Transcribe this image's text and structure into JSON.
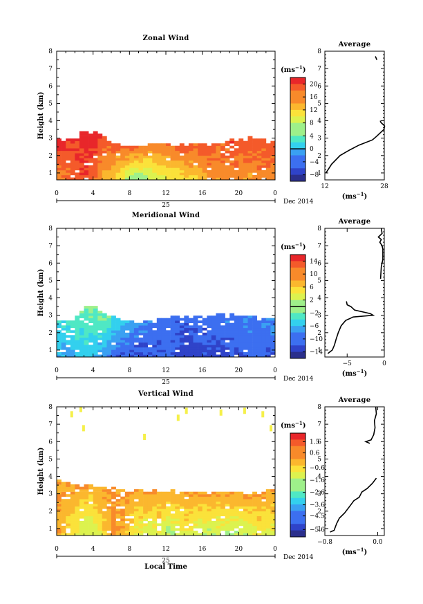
{
  "date_label": "Dec 2014",
  "xaxis_title": "Local Time",
  "day_label": "25",
  "ylabel": "Height (km)",
  "unit": "(ms",
  "unit_exp": "−1",
  "avg_title": "Average",
  "chart_data": [
    {
      "type": "heatmap",
      "title": "Zonal Wind",
      "xlabel": "",
      "ylabel": "Height (km)",
      "xticks": [
        "0",
        "4",
        "8",
        "12",
        "16",
        "20",
        "0"
      ],
      "xlim": [
        0,
        24
      ],
      "yticks": [
        "1",
        "2",
        "3",
        "4",
        "5",
        "6",
        "7",
        "8"
      ],
      "ylim": [
        0.6,
        8.0
      ],
      "colorbar": {
        "ticks": [
          "20",
          "16",
          "12",
          "8",
          "4",
          "0",
          "−4",
          "−8"
        ],
        "values": [
          20,
          16,
          12,
          8,
          4,
          0,
          -4,
          -8
        ],
        "range": [
          -10,
          22
        ],
        "contour_value": 0
      },
      "x": [
        0,
        1,
        2,
        3,
        4,
        5,
        6,
        7,
        8,
        9,
        10,
        11,
        12,
        13,
        14,
        15,
        16,
        17,
        18,
        19,
        20,
        21,
        22,
        23,
        24
      ],
      "top_km": [
        2.8,
        2.8,
        3.0,
        3.3,
        3.3,
        2.9,
        2.6,
        2.6,
        2.5,
        2.5,
        2.6,
        2.5,
        2.5,
        2.5,
        2.6,
        2.6,
        2.7,
        2.6,
        2.8,
        2.9,
        2.9,
        2.9,
        2.8,
        2.8,
        2.8
      ],
      "near_surface_ms": [
        16,
        17,
        19,
        19,
        17,
        14,
        12,
        10,
        6,
        5,
        7,
        9,
        10,
        10,
        12,
        12,
        14,
        15,
        15,
        16,
        15,
        15,
        16,
        16,
        16
      ],
      "top_ms": [
        21,
        20,
        20,
        21,
        21,
        19,
        18,
        18,
        18,
        18,
        17,
        17,
        17,
        18,
        18,
        18,
        19,
        18,
        18,
        19,
        19,
        19,
        18,
        18,
        18
      ],
      "average": {
        "xlim": [
          12,
          28
        ],
        "xticks": [
          "12",
          "28"
        ],
        "profile": [
          [
            1.0,
            12.3
          ],
          [
            1.5,
            13.8
          ],
          [
            2.0,
            16.1
          ],
          [
            2.3,
            18.5
          ],
          [
            2.6,
            21.2
          ],
          [
            2.9,
            24.8
          ],
          [
            3.1,
            25.9
          ],
          [
            3.3,
            26.9
          ],
          [
            3.5,
            27.9
          ],
          [
            3.7,
            28.1
          ],
          [
            3.9,
            27.1
          ],
          [
            4.0,
            26.9
          ]
        ],
        "profile2": [
          [
            7.7,
            25.6
          ],
          [
            7.5,
            26.0
          ]
        ]
      }
    },
    {
      "type": "heatmap",
      "title": "Meridional Wind",
      "xlabel": "",
      "ylabel": "Height (km)",
      "xticks": [
        "0",
        "4",
        "8",
        "12",
        "16",
        "20",
        "0"
      ],
      "xlim": [
        0,
        24
      ],
      "yticks": [
        "1",
        "2",
        "3",
        "4",
        "5",
        "6",
        "7",
        "8"
      ],
      "ylim": [
        0.6,
        8.0
      ],
      "colorbar": {
        "ticks": [
          "14",
          "10",
          "6",
          "2",
          "−2",
          "−6",
          "−10",
          "−14"
        ],
        "values": [
          14,
          10,
          6,
          2,
          -2,
          -6,
          -10,
          -14
        ],
        "range": [
          -16,
          16
        ],
        "contour_value": 0
      },
      "x": [
        0,
        1,
        2,
        3,
        4,
        5,
        6,
        7,
        8,
        9,
        10,
        11,
        12,
        13,
        14,
        15,
        16,
        17,
        18,
        19,
        20,
        21,
        22,
        23,
        24
      ],
      "top_km": [
        2.6,
        2.6,
        2.9,
        3.5,
        3.4,
        3.0,
        2.8,
        2.7,
        2.6,
        2.5,
        2.6,
        2.6,
        2.7,
        2.8,
        2.9,
        2.8,
        2.9,
        3.0,
        3.0,
        3.1,
        2.9,
        2.9,
        2.7,
        2.8,
        2.6
      ],
      "near_surface_ms": [
        -6,
        -7,
        -6,
        -5,
        -6,
        -8,
        -10,
        -11,
        -11,
        -12,
        -11,
        -11,
        -10,
        -12,
        -13,
        -12,
        -12,
        -12,
        -12,
        -11,
        -11,
        -10,
        -10,
        -11,
        -11
      ],
      "top_ms": [
        -4,
        -3,
        -2,
        -1,
        0,
        -1,
        -3,
        -5,
        -7,
        -8,
        -9,
        -10,
        -10,
        -10,
        -10,
        -10,
        -10,
        -9,
        -9,
        -9,
        -9,
        -9,
        -9,
        -8,
        -8
      ],
      "average": {
        "xlim": [
          -8,
          0
        ],
        "xticks": [
          "−5",
          "0"
        ],
        "profile": [
          [
            0.8,
            -7.6
          ],
          [
            1.0,
            -7.0
          ],
          [
            1.3,
            -6.7
          ],
          [
            1.6,
            -6.5
          ],
          [
            2.0,
            -6.2
          ],
          [
            2.4,
            -5.8
          ],
          [
            2.7,
            -5.2
          ],
          [
            2.9,
            -4.2
          ],
          [
            3.0,
            -1.5
          ],
          [
            3.1,
            -1.9
          ],
          [
            3.3,
            -4.0
          ],
          [
            3.5,
            -4.5
          ],
          [
            3.6,
            -5.0
          ],
          [
            3.8,
            -5.1
          ]
        ],
        "profile2": [
          [
            5.1,
            -0.5
          ],
          [
            5.8,
            -0.4
          ],
          [
            6.2,
            -0.2
          ],
          [
            6.8,
            -0.2
          ],
          [
            7.0,
            -0.3
          ],
          [
            7.2,
            -0.6
          ],
          [
            7.35,
            -0.4
          ],
          [
            7.5,
            -0.8
          ],
          [
            7.7,
            -0.3
          ],
          [
            8.0,
            -0.4
          ]
        ]
      }
    },
    {
      "type": "heatmap",
      "title": "Vertical Wind",
      "xlabel": "Local Time",
      "ylabel": "Height (km)",
      "xticks": [
        "0",
        "4",
        "8",
        "12",
        "16",
        "20",
        "0"
      ],
      "xlim": [
        0,
        24
      ],
      "yticks": [
        "1",
        "2",
        "3",
        "4",
        "5",
        "6",
        "7",
        "8"
      ],
      "ylim": [
        0.6,
        8.0
      ],
      "colorbar": {
        "ticks": [
          "1.5",
          "0.6",
          "−0.6",
          "−1.6",
          "−2.6",
          "−3.6",
          "−4.5",
          "−5.6"
        ],
        "values": [
          1.5,
          0.6,
          -0.6,
          -1.6,
          -2.6,
          -3.6,
          -4.5,
          -5.6
        ],
        "range": [
          -6.2,
          2.2
        ],
        "contour_value": null
      },
      "x": [
        0,
        1,
        2,
        3,
        4,
        5,
        6,
        7,
        8,
        9,
        10,
        11,
        12,
        13,
        14,
        15,
        16,
        17,
        18,
        19,
        20,
        21,
        22,
        23,
        24
      ],
      "top_km": [
        3.7,
        3.7,
        3.5,
        3.5,
        3.4,
        3.3,
        3.3,
        3.2,
        3.1,
        3.1,
        3.1,
        3.1,
        3.0,
        3.0,
        3.0,
        3.0,
        3.0,
        3.0,
        3.0,
        3.0,
        3.0,
        3.0,
        2.9,
        3.1,
        3.0
      ],
      "near_surface_ms": [
        0.2,
        -0.6,
        -1.2,
        -1.6,
        -1.4,
        -0.5,
        0.4,
        0.1,
        -0.8,
        -1.2,
        -1.6,
        -1.2,
        -1.9,
        -1.5,
        -1.0,
        -1.3,
        -1.6,
        -1.8,
        -1.4,
        -1.9,
        -1.6,
        -1.5,
        -1.0,
        -1.3,
        -1.2
      ],
      "top_ms": [
        0.3,
        0.3,
        0.2,
        0.2,
        0.1,
        0.3,
        0.4,
        0.3,
        0.3,
        0.3,
        0.3,
        0.3,
        0.2,
        0.2,
        0.3,
        0.3,
        0.2,
        0.3,
        0.3,
        0.3,
        0.3,
        0.3,
        0.3,
        0.3,
        0.3
      ],
      "upper_patches": [
        [
          1.5,
          7.6
        ],
        [
          2.5,
          7.9
        ],
        [
          2.8,
          6.8
        ],
        [
          9.5,
          6.3
        ],
        [
          13.2,
          7.4
        ],
        [
          14.1,
          7.8
        ],
        [
          17.9,
          7.7
        ],
        [
          20.5,
          7.8
        ],
        [
          22.5,
          7.6
        ],
        [
          23.4,
          6.8
        ]
      ],
      "average": {
        "xlim": [
          -0.8,
          0.1
        ],
        "xticks": [
          "−0.8",
          "0.0"
        ],
        "profile": [
          [
            0.8,
            -0.72
          ],
          [
            0.9,
            -0.66
          ],
          [
            1.1,
            -0.64
          ],
          [
            1.3,
            -0.62
          ],
          [
            1.6,
            -0.58
          ],
          [
            1.9,
            -0.5
          ],
          [
            2.3,
            -0.42
          ],
          [
            2.6,
            -0.36
          ],
          [
            2.8,
            -0.28
          ],
          [
            3.1,
            -0.24
          ],
          [
            3.3,
            -0.16
          ],
          [
            3.6,
            -0.08
          ],
          [
            3.9,
            -0.02
          ]
        ],
        "profile2": [
          [
            5.9,
            -0.12
          ],
          [
            6.0,
            -0.18
          ],
          [
            6.1,
            -0.1
          ],
          [
            6.4,
            -0.06
          ],
          [
            6.8,
            -0.04
          ],
          [
            7.2,
            -0.05
          ],
          [
            7.6,
            -0.02
          ],
          [
            8.0,
            -0.03
          ]
        ]
      }
    }
  ]
}
